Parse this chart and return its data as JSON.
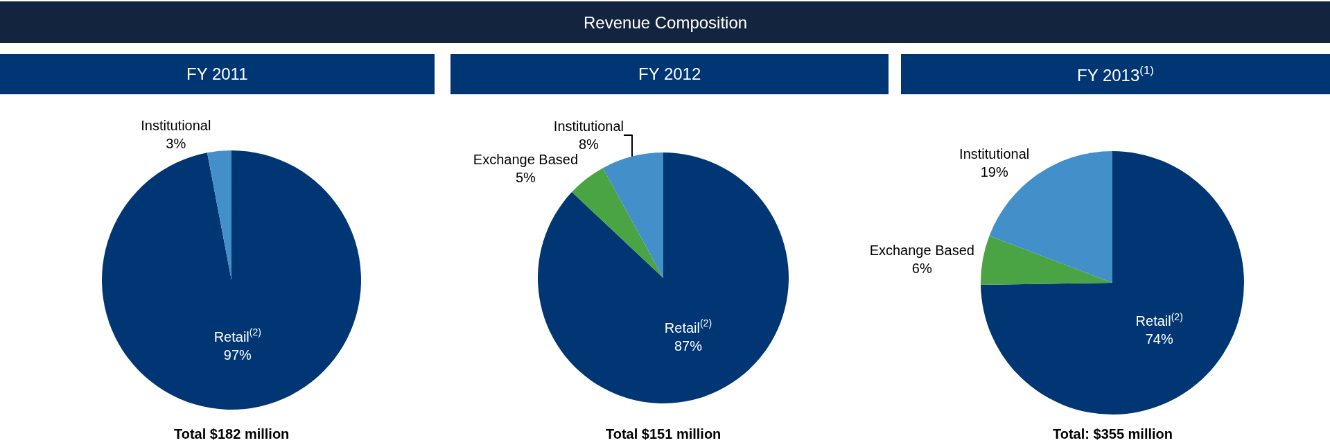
{
  "chart_data": [
    {
      "type": "other",
      "title": "Revenue Composition"
    },
    {
      "type": "pie",
      "title": "FY 2011",
      "categories": [
        "Retail$^{(2)}$",
        "Institutional"
      ],
      "values": [
        97,
        3
      ],
      "value_labels": [
        "97%",
        "3%"
      ],
      "colors": [
        "#003673",
        "#428fc9"
      ],
      "annotations": [
        "Total $182 million"
      ]
    },
    {
      "type": "pie",
      "title": "FY 2012",
      "categories": [
        "Retail$^{(2)}$",
        "Exchange Based",
        "Institutional"
      ],
      "values": [
        87,
        5,
        8
      ],
      "value_labels": [
        "87%",
        "5%",
        "8%"
      ],
      "colors": [
        "#003673",
        "#4aa444",
        "#428fc9"
      ],
      "annotations": [
        "Total $151 million"
      ]
    },
    {
      "type": "pie",
      "title": "FY 2013$^{(1)}$",
      "categories": [
        "Retail$^{(2)}$",
        "Exchange Based",
        "Institutional"
      ],
      "values": [
        74,
        6,
        19
      ],
      "value_labels": [
        "74%",
        "6%",
        "19%"
      ],
      "colors": [
        "#003673",
        "#4aa444",
        "#428fc9"
      ],
      "annotations": [
        "Total: $355 million"
      ]
    }
  ]
}
